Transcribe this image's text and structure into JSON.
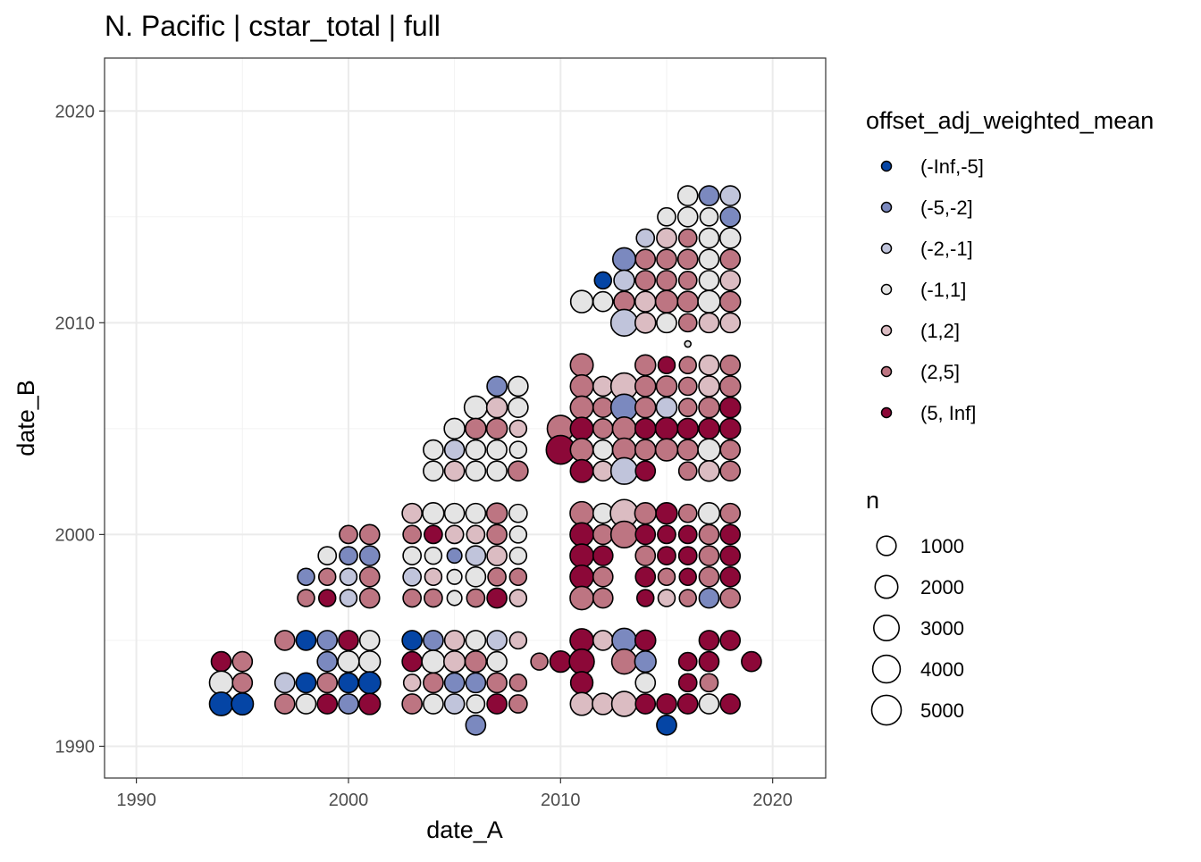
{
  "chart_data": {
    "type": "scatter",
    "title": "N. Pacific | cstar_total | full",
    "xlabel": "date_A",
    "ylabel": "date_B",
    "xlim": [
      1988.5,
      2022.5
    ],
    "ylim": [
      1988.5,
      2022.5
    ],
    "x_ticks": [
      1990,
      2000,
      2010,
      2020
    ],
    "y_ticks": [
      1990,
      2000,
      2010,
      2020
    ],
    "grid": true,
    "legend_placement": "right",
    "color_legend": {
      "title": "offset_adj_weighted_mean",
      "categories": [
        "(-Inf,-5]",
        "(-5,-2]",
        "(-2,-1]",
        "(-1,1]",
        "(1,2]",
        "(2,5]",
        "(5, Inf]"
      ],
      "colors": [
        "#0545a5",
        "#7b89bf",
        "#c0c4db",
        "#e4e4e4",
        "#dbbcc2",
        "#bd7582",
        "#8c0838"
      ]
    },
    "size_legend": {
      "title": "n",
      "breaks": [
        1000,
        2000,
        3000,
        4000,
        5000
      ],
      "labels": [
        "1000",
        "2000",
        "3000",
        "4000",
        "5000"
      ]
    },
    "point_fields": [
      "date_A",
      "date_B",
      "category_index",
      "n"
    ],
    "points": [
      [
        1994,
        1994,
        6,
        1100
      ],
      [
        1994,
        1993,
        3,
        2200
      ],
      [
        1994,
        1992,
        0,
        2200
      ],
      [
        1995,
        1994,
        5,
        1100
      ],
      [
        1995,
        1993,
        5,
        1100
      ],
      [
        1995,
        1992,
        0,
        1700
      ],
      [
        1997,
        1995,
        5,
        1100
      ],
      [
        1998,
        1995,
        0,
        1100
      ],
      [
        1999,
        1995,
        1,
        1100
      ],
      [
        2000,
        1995,
        6,
        1100
      ],
      [
        2001,
        1995,
        3,
        1100
      ],
      [
        1999,
        1994,
        1,
        1100
      ],
      [
        2000,
        1994,
        3,
        1500
      ],
      [
        2001,
        1994,
        3,
        1500
      ],
      [
        1997,
        1993,
        2,
        1100
      ],
      [
        1998,
        1993,
        0,
        1100
      ],
      [
        1999,
        1993,
        5,
        1100
      ],
      [
        2000,
        1993,
        0,
        1100
      ],
      [
        2001,
        1993,
        0,
        1700
      ],
      [
        1997,
        1992,
        5,
        1100
      ],
      [
        1998,
        1992,
        3,
        1100
      ],
      [
        1999,
        1992,
        6,
        1100
      ],
      [
        2000,
        1992,
        1,
        1100
      ],
      [
        2001,
        1992,
        6,
        1500
      ],
      [
        2000,
        2000,
        5,
        700
      ],
      [
        2001,
        2000,
        5,
        1100
      ],
      [
        1999,
        1999,
        3,
        700
      ],
      [
        2000,
        1999,
        1,
        700
      ],
      [
        2001,
        1999,
        1,
        1100
      ],
      [
        1998,
        1998,
        1,
        500
      ],
      [
        1999,
        1998,
        5,
        500
      ],
      [
        2000,
        1998,
        2,
        500
      ],
      [
        2001,
        1998,
        5,
        1100
      ],
      [
        1998,
        1997,
        5,
        500
      ],
      [
        1999,
        1997,
        6,
        500
      ],
      [
        2000,
        1997,
        2,
        500
      ],
      [
        2001,
        1997,
        5,
        1100
      ],
      [
        2007,
        2007,
        1,
        1100
      ],
      [
        2008,
        2007,
        3,
        1100
      ],
      [
        2006,
        2006,
        3,
        2000
      ],
      [
        2007,
        2006,
        4,
        1300
      ],
      [
        2008,
        2006,
        3,
        1100
      ],
      [
        2005,
        2005,
        3,
        1300
      ],
      [
        2006,
        2005,
        5,
        1300
      ],
      [
        2007,
        2005,
        5,
        1300
      ],
      [
        2008,
        2005,
        4,
        500
      ],
      [
        2004,
        2004,
        3,
        1100
      ],
      [
        2005,
        2004,
        2,
        1100
      ],
      [
        2006,
        2004,
        3,
        1100
      ],
      [
        2007,
        2004,
        3,
        1100
      ],
      [
        2008,
        2004,
        3,
        500
      ],
      [
        2004,
        2003,
        3,
        1100
      ],
      [
        2005,
        2003,
        4,
        1100
      ],
      [
        2006,
        2003,
        3,
        1100
      ],
      [
        2007,
        2003,
        3,
        1100
      ],
      [
        2008,
        2003,
        5,
        1100
      ],
      [
        2003,
        2001,
        4,
        1100
      ],
      [
        2004,
        2001,
        3,
        1500
      ],
      [
        2005,
        2001,
        3,
        1100
      ],
      [
        2006,
        2001,
        3,
        1100
      ],
      [
        2007,
        2001,
        5,
        1300
      ],
      [
        2008,
        2001,
        3,
        700
      ],
      [
        2003,
        2000,
        5,
        700
      ],
      [
        2004,
        2000,
        6,
        700
      ],
      [
        2005,
        2000,
        4,
        700
      ],
      [
        2006,
        2000,
        4,
        700
      ],
      [
        2007,
        2000,
        5,
        1100
      ],
      [
        2008,
        2000,
        3,
        500
      ],
      [
        2003,
        1999,
        3,
        700
      ],
      [
        2004,
        1999,
        3,
        500
      ],
      [
        2005,
        1999,
        1,
        200
      ],
      [
        2006,
        1999,
        2,
        1100
      ],
      [
        2007,
        1999,
        4,
        1100
      ],
      [
        2008,
        1999,
        3,
        500
      ],
      [
        2003,
        1998,
        2,
        700
      ],
      [
        2004,
        1998,
        4,
        500
      ],
      [
        2005,
        1998,
        3,
        200
      ],
      [
        2006,
        1998,
        3,
        1100
      ],
      [
        2007,
        1998,
        5,
        700
      ],
      [
        2008,
        1998,
        5,
        500
      ],
      [
        2003,
        1997,
        5,
        700
      ],
      [
        2004,
        1997,
        5,
        700
      ],
      [
        2005,
        1997,
        3,
        200
      ],
      [
        2006,
        1997,
        5,
        700
      ],
      [
        2007,
        1997,
        6,
        1100
      ],
      [
        2008,
        1997,
        4,
        500
      ],
      [
        2003,
        1995,
        0,
        1100
      ],
      [
        2004,
        1995,
        1,
        1100
      ],
      [
        2005,
        1995,
        4,
        1100
      ],
      [
        2006,
        1995,
        3,
        1100
      ],
      [
        2007,
        1995,
        2,
        1100
      ],
      [
        2008,
        1995,
        4,
        500
      ],
      [
        2003,
        1994,
        6,
        1100
      ],
      [
        2004,
        1994,
        3,
        2000
      ],
      [
        2005,
        1994,
        4,
        1500
      ],
      [
        2006,
        1994,
        5,
        1500
      ],
      [
        2007,
        1994,
        3,
        1100
      ],
      [
        2009,
        1994,
        5,
        500
      ],
      [
        2003,
        1993,
        4,
        500
      ],
      [
        2004,
        1993,
        5,
        1100
      ],
      [
        2005,
        1993,
        1,
        1100
      ],
      [
        2006,
        1993,
        1,
        1100
      ],
      [
        2007,
        1993,
        5,
        1100
      ],
      [
        2008,
        1993,
        5,
        500
      ],
      [
        2003,
        1992,
        5,
        1100
      ],
      [
        2004,
        1992,
        3,
        1100
      ],
      [
        2005,
        1992,
        2,
        1100
      ],
      [
        2006,
        1992,
        3,
        700
      ],
      [
        2007,
        1992,
        6,
        1100
      ],
      [
        2008,
        1992,
        5,
        700
      ],
      [
        2006,
        1991,
        1,
        1100
      ],
      [
        2011,
        2001,
        5,
        2200
      ],
      [
        2012,
        2001,
        3,
        1100
      ],
      [
        2013,
        2001,
        4,
        4000
      ],
      [
        2014,
        2001,
        5,
        1500
      ],
      [
        2015,
        2001,
        6,
        1500
      ],
      [
        2016,
        2001,
        5,
        700
      ],
      [
        2017,
        2001,
        3,
        1500
      ],
      [
        2018,
        2001,
        5,
        1100
      ],
      [
        2011,
        2000,
        6,
        2200
      ],
      [
        2012,
        2000,
        5,
        1100
      ],
      [
        2013,
        2000,
        5,
        3500
      ],
      [
        2014,
        2000,
        6,
        1100
      ],
      [
        2015,
        2000,
        6,
        700
      ],
      [
        2016,
        2000,
        6,
        700
      ],
      [
        2017,
        2000,
        5,
        1100
      ],
      [
        2018,
        2000,
        6,
        1100
      ],
      [
        2011,
        1999,
        6,
        2200
      ],
      [
        2012,
        1999,
        6,
        1100
      ],
      [
        2014,
        1999,
        5,
        1100
      ],
      [
        2015,
        1999,
        6,
        700
      ],
      [
        2016,
        1999,
        6,
        700
      ],
      [
        2017,
        1999,
        5,
        1100
      ],
      [
        2018,
        1999,
        6,
        1100
      ],
      [
        2011,
        1998,
        6,
        2200
      ],
      [
        2012,
        1998,
        5,
        1100
      ],
      [
        2014,
        1998,
        6,
        1100
      ],
      [
        2015,
        1998,
        5,
        500
      ],
      [
        2016,
        1998,
        6,
        500
      ],
      [
        2017,
        1998,
        5,
        1100
      ],
      [
        2018,
        1998,
        6,
        1100
      ],
      [
        2011,
        1997,
        5,
        2200
      ],
      [
        2012,
        1997,
        5,
        1100
      ],
      [
        2014,
        1997,
        6,
        500
      ],
      [
        2015,
        1997,
        4,
        500
      ],
      [
        2016,
        1997,
        5,
        500
      ],
      [
        2017,
        1997,
        1,
        1100
      ],
      [
        2018,
        1997,
        5,
        1100
      ],
      [
        2011,
        1995,
        6,
        2200
      ],
      [
        2012,
        1995,
        4,
        1100
      ],
      [
        2013,
        1995,
        1,
        2500
      ],
      [
        2014,
        1995,
        6,
        1300
      ],
      [
        2017,
        1995,
        6,
        1100
      ],
      [
        2018,
        1995,
        6,
        1100
      ],
      [
        2010,
        1994,
        6,
        1500
      ],
      [
        2011,
        1994,
        6,
        2800
      ],
      [
        2013,
        1994,
        5,
        2800
      ],
      [
        2014,
        1994,
        1,
        1500
      ],
      [
        2016,
        1994,
        6,
        700
      ],
      [
        2017,
        1994,
        6,
        1100
      ],
      [
        2019,
        1994,
        6,
        1100
      ],
      [
        2011,
        1993,
        6,
        1800
      ],
      [
        2014,
        1993,
        3,
        1100
      ],
      [
        2016,
        1993,
        6,
        700
      ],
      [
        2017,
        1993,
        5,
        700
      ],
      [
        2011,
        1992,
        4,
        2000
      ],
      [
        2012,
        1992,
        4,
        1500
      ],
      [
        2013,
        1992,
        4,
        2800
      ],
      [
        2014,
        1992,
        6,
        1100
      ],
      [
        2015,
        1992,
        6,
        1100
      ],
      [
        2016,
        1992,
        6,
        1100
      ],
      [
        2017,
        1992,
        3,
        1100
      ],
      [
        2018,
        1992,
        6,
        1100
      ],
      [
        2015,
        1991,
        0,
        1100
      ],
      [
        2016,
        2009,
        3,
        20
      ],
      [
        2011,
        2008,
        5,
        2000
      ],
      [
        2014,
        2008,
        5,
        1300
      ],
      [
        2015,
        2008,
        6,
        500
      ],
      [
        2016,
        2008,
        5,
        500
      ],
      [
        2017,
        2008,
        4,
        1100
      ],
      [
        2018,
        2008,
        5,
        1100
      ],
      [
        2011,
        2007,
        5,
        2000
      ],
      [
        2012,
        2007,
        4,
        1100
      ],
      [
        2013,
        2007,
        4,
        3500
      ],
      [
        2014,
        2007,
        5,
        1300
      ],
      [
        2015,
        2007,
        5,
        1300
      ],
      [
        2016,
        2007,
        5,
        700
      ],
      [
        2017,
        2007,
        4,
        1300
      ],
      [
        2018,
        2007,
        5,
        1300
      ],
      [
        2011,
        2006,
        5,
        2000
      ],
      [
        2012,
        2006,
        5,
        1100
      ],
      [
        2013,
        2006,
        1,
        3500
      ],
      [
        2014,
        2006,
        5,
        1300
      ],
      [
        2015,
        2006,
        2,
        1300
      ],
      [
        2016,
        2006,
        5,
        700
      ],
      [
        2017,
        2006,
        5,
        1300
      ],
      [
        2018,
        2006,
        6,
        1300
      ],
      [
        2010,
        2005,
        5,
        3500
      ],
      [
        2011,
        2005,
        6,
        2000
      ],
      [
        2012,
        2005,
        5,
        1100
      ],
      [
        2013,
        2005,
        5,
        2200
      ],
      [
        2014,
        2005,
        6,
        1300
      ],
      [
        2015,
        2005,
        6,
        1800
      ],
      [
        2016,
        2005,
        6,
        1300
      ],
      [
        2017,
        2005,
        6,
        1300
      ],
      [
        2018,
        2005,
        6,
        1300
      ],
      [
        2010,
        2004,
        6,
        4500
      ],
      [
        2011,
        2004,
        5,
        2000
      ],
      [
        2012,
        2004,
        3,
        1100
      ],
      [
        2013,
        2004,
        5,
        2200
      ],
      [
        2014,
        2004,
        5,
        1300
      ],
      [
        2015,
        2004,
        5,
        1800
      ],
      [
        2016,
        2004,
        5,
        1300
      ],
      [
        2017,
        2004,
        3,
        1800
      ],
      [
        2018,
        2004,
        5,
        1100
      ],
      [
        2011,
        2003,
        6,
        2000
      ],
      [
        2012,
        2003,
        4,
        1100
      ],
      [
        2013,
        2003,
        2,
        3500
      ],
      [
        2014,
        2003,
        6,
        1100
      ],
      [
        2016,
        2003,
        5,
        700
      ],
      [
        2017,
        2003,
        4,
        1300
      ],
      [
        2018,
        2003,
        5,
        1100
      ],
      [
        2016,
        2016,
        3,
        1100
      ],
      [
        2017,
        2016,
        1,
        1100
      ],
      [
        2018,
        2016,
        2,
        1100
      ],
      [
        2015,
        2015,
        3,
        700
      ],
      [
        2016,
        2015,
        3,
        1100
      ],
      [
        2017,
        2015,
        3,
        700
      ],
      [
        2018,
        2015,
        1,
        1100
      ],
      [
        2014,
        2014,
        2,
        700
      ],
      [
        2015,
        2014,
        4,
        1100
      ],
      [
        2016,
        2014,
        5,
        700
      ],
      [
        2017,
        2014,
        3,
        1100
      ],
      [
        2018,
        2014,
        3,
        1300
      ],
      [
        2013,
        2013,
        1,
        2000
      ],
      [
        2014,
        2013,
        5,
        1100
      ],
      [
        2015,
        2013,
        5,
        1100
      ],
      [
        2016,
        2013,
        5,
        1100
      ],
      [
        2017,
        2013,
        3,
        1100
      ],
      [
        2018,
        2013,
        5,
        1100
      ],
      [
        2012,
        2012,
        0,
        500
      ],
      [
        2013,
        2012,
        2,
        1300
      ],
      [
        2014,
        2012,
        5,
        1100
      ],
      [
        2015,
        2012,
        5,
        1100
      ],
      [
        2016,
        2012,
        5,
        700
      ],
      [
        2017,
        2012,
        3,
        1100
      ],
      [
        2018,
        2012,
        4,
        1100
      ],
      [
        2011,
        2011,
        3,
        1800
      ],
      [
        2012,
        2011,
        3,
        1100
      ],
      [
        2013,
        2011,
        5,
        1300
      ],
      [
        2014,
        2011,
        4,
        1300
      ],
      [
        2015,
        2011,
        5,
        1800
      ],
      [
        2016,
        2011,
        5,
        1300
      ],
      [
        2017,
        2011,
        3,
        1800
      ],
      [
        2018,
        2011,
        5,
        1300
      ],
      [
        2013,
        2010,
        2,
        3500
      ],
      [
        2014,
        2010,
        4,
        1300
      ],
      [
        2015,
        2010,
        3,
        1100
      ],
      [
        2016,
        2010,
        5,
        700
      ],
      [
        2017,
        2010,
        4,
        1100
      ],
      [
        2018,
        2010,
        4,
        1100
      ]
    ]
  }
}
